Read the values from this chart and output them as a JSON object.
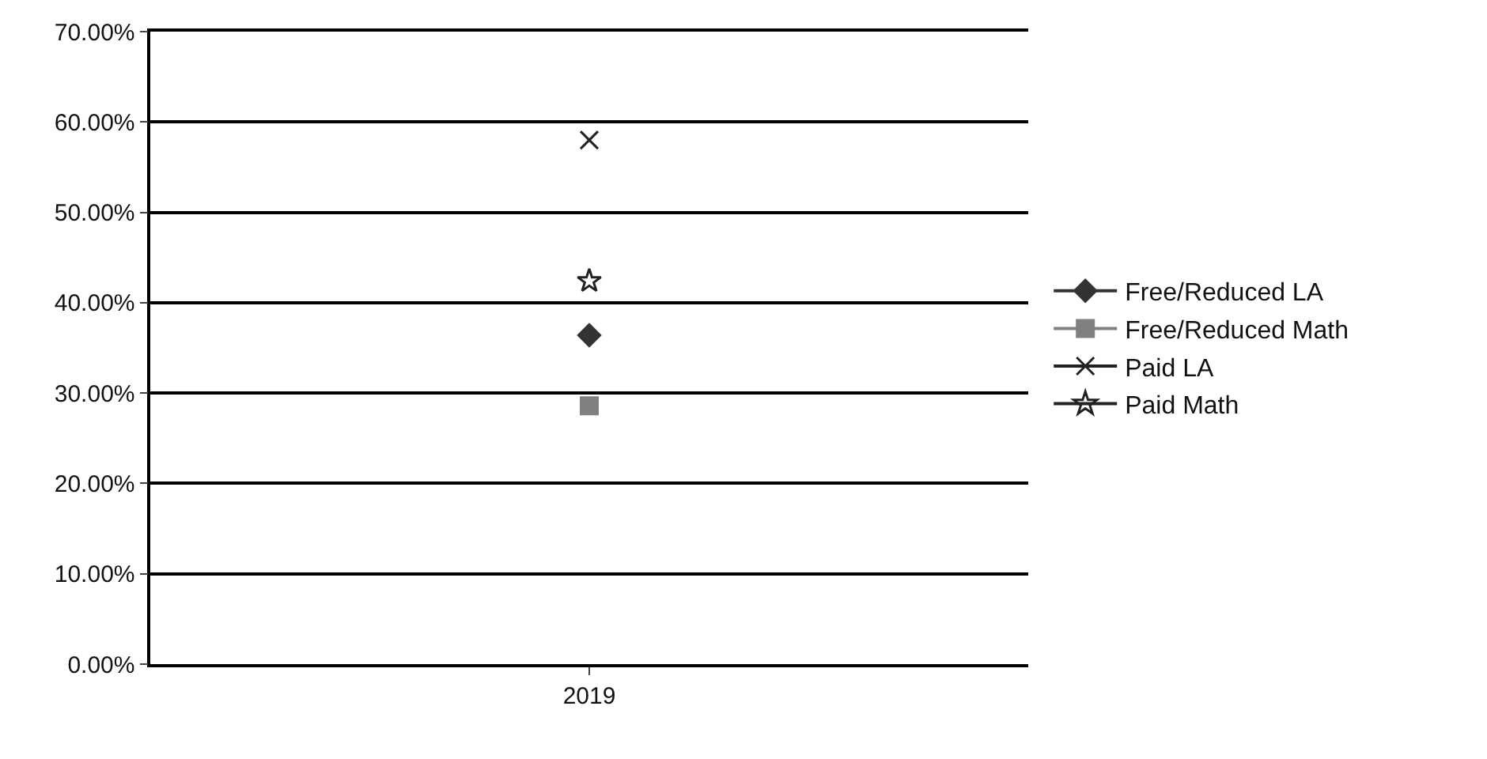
{
  "chart_data": {
    "type": "line",
    "categories": [
      "2019"
    ],
    "series": [
      {
        "name": "Free/Reduced LA",
        "color": "#333333",
        "marker": "diamond",
        "values": [
          36.4
        ]
      },
      {
        "name": "Free/Reduced Math",
        "color": "#808080",
        "marker": "square",
        "values": [
          28.6
        ]
      },
      {
        "name": "Paid LA",
        "color": "#222222",
        "marker": "cross",
        "values": [
          58
        ]
      },
      {
        "name": "Paid Math",
        "color": "#222222",
        "marker": "star",
        "values": [
          42.4
        ]
      }
    ],
    "ylim": [
      0,
      70
    ],
    "yticks": [
      {
        "value": 0,
        "label": "0.00%"
      },
      {
        "value": 10,
        "label": "10.00%"
      },
      {
        "value": 20,
        "label": "20.00%"
      },
      {
        "value": 30,
        "label": "30.00%"
      },
      {
        "value": 40,
        "label": "40.00%"
      },
      {
        "value": 50,
        "label": "50.00%"
      },
      {
        "value": 60,
        "label": "60.00%"
      },
      {
        "value": 70,
        "label": "70.00%"
      }
    ],
    "grid": "y",
    "legend": "right"
  }
}
